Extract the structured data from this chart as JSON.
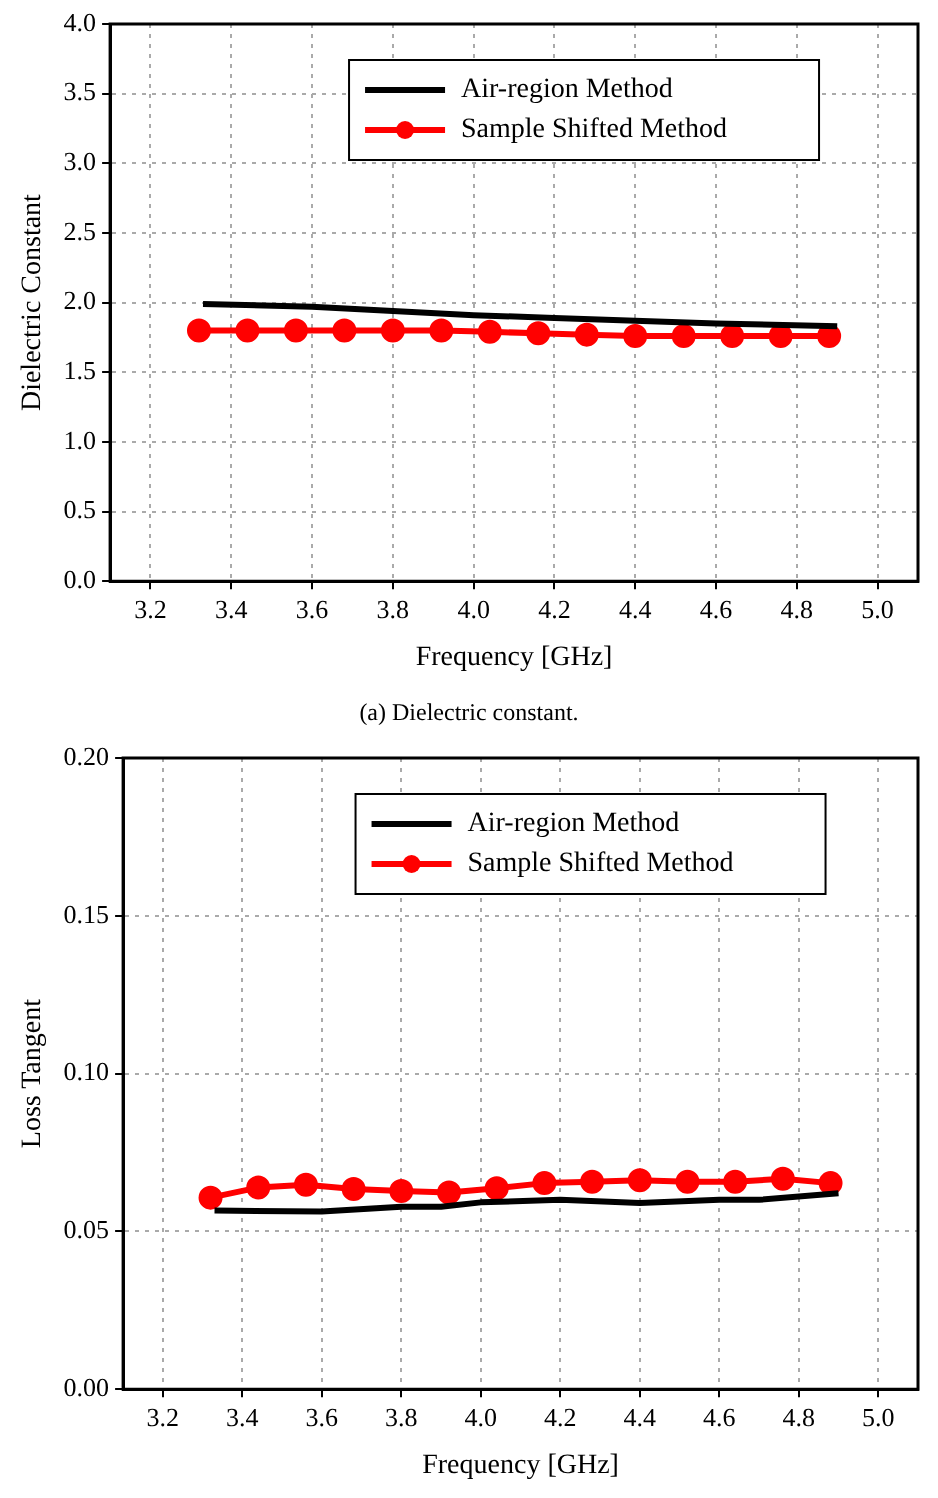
{
  "chart_data": [
    {
      "type": "line",
      "xlabel": "Frequency [GHz]",
      "ylabel": "Dielectric Constant",
      "annotations": [
        "(a) Dielectric constant."
      ],
      "xlim": [
        3.1,
        5.1
      ],
      "xticks": [
        {
          "value": 3.2,
          "label": "3.2"
        },
        {
          "value": 3.4,
          "label": "3.4"
        },
        {
          "value": 3.6,
          "label": "3.6"
        },
        {
          "value": 3.8,
          "label": "3.8"
        },
        {
          "value": 4.0,
          "label": "4.0"
        },
        {
          "value": 4.2,
          "label": "4.2"
        },
        {
          "value": 4.4,
          "label": "4.4"
        },
        {
          "value": 4.6,
          "label": "4.6"
        },
        {
          "value": 4.8,
          "label": "4.8"
        },
        {
          "value": 5.0,
          "label": "5.0"
        }
      ],
      "ylim": [
        0,
        4
      ],
      "yticks": [
        {
          "value": 0,
          "label": "0.0"
        },
        {
          "value": 0.5,
          "label": "0.5"
        },
        {
          "value": 1,
          "label": "1.0"
        },
        {
          "value": 1.5,
          "label": "1.5"
        },
        {
          "value": 2,
          "label": "2.0"
        },
        {
          "value": 2.5,
          "label": "2.5"
        },
        {
          "value": 3,
          "label": "3.0"
        },
        {
          "value": 3.5,
          "label": "3.5"
        },
        {
          "value": 4,
          "label": "4.0"
        }
      ],
      "grid": true,
      "legend": "top",
      "series": [
        {
          "name": "Air-region Method",
          "color": "#000000",
          "marker": "none",
          "x": [
            3.33,
            3.6,
            3.8,
            4.0,
            4.2,
            4.4,
            4.6,
            4.9
          ],
          "values": [
            1.99,
            1.97,
            1.94,
            1.91,
            1.89,
            1.87,
            1.85,
            1.83
          ]
        },
        {
          "name": "Sample Shifted Method",
          "color": "#ff0000",
          "marker": "circle",
          "x": [
            3.32,
            3.44,
            3.56,
            3.68,
            3.8,
            3.92,
            4.04,
            4.16,
            4.28,
            4.4,
            4.52,
            4.64,
            4.76,
            4.88
          ],
          "values": [
            1.8,
            1.8,
            1.8,
            1.8,
            1.8,
            1.8,
            1.79,
            1.78,
            1.77,
            1.76,
            1.76,
            1.76,
            1.76,
            1.76
          ]
        }
      ]
    },
    {
      "type": "line",
      "xlabel": "Frequency [GHz]",
      "ylabel": "Loss Tangent",
      "xlim": [
        3.1,
        5.1
      ],
      "xticks": [
        {
          "value": 3.2,
          "label": "3.2"
        },
        {
          "value": 3.4,
          "label": "3.4"
        },
        {
          "value": 3.6,
          "label": "3.6"
        },
        {
          "value": 3.8,
          "label": "3.8"
        },
        {
          "value": 4.0,
          "label": "4.0"
        },
        {
          "value": 4.2,
          "label": "4.2"
        },
        {
          "value": 4.4,
          "label": "4.4"
        },
        {
          "value": 4.6,
          "label": "4.6"
        },
        {
          "value": 4.8,
          "label": "4.8"
        },
        {
          "value": 5.0,
          "label": "5.0"
        }
      ],
      "ylim": [
        0,
        0.2
      ],
      "yticks": [
        {
          "value": 0,
          "label": "0.00"
        },
        {
          "value": 0.05,
          "label": "0.05"
        },
        {
          "value": 0.1,
          "label": "0.10"
        },
        {
          "value": 0.15,
          "label": "0.15"
        },
        {
          "value": 0.2,
          "label": "0.20"
        }
      ],
      "grid": true,
      "legend": "top",
      "series": [
        {
          "name": "Air-region Method",
          "color": "#000000",
          "marker": "none",
          "x": [
            3.33,
            3.6,
            3.8,
            3.9,
            4.0,
            4.2,
            4.4,
            4.6,
            4.7,
            4.9
          ],
          "values": [
            0.0566,
            0.0563,
            0.0578,
            0.0578,
            0.0592,
            0.06,
            0.059,
            0.06,
            0.06,
            0.0621
          ]
        },
        {
          "name": "Sample Shifted Method",
          "color": "#ff0000",
          "marker": "circle",
          "x": [
            3.32,
            3.44,
            3.56,
            3.68,
            3.8,
            3.92,
            4.04,
            4.16,
            4.28,
            4.4,
            4.52,
            4.64,
            4.76,
            4.88
          ],
          "values": [
            0.0607,
            0.0639,
            0.0648,
            0.0634,
            0.0628,
            0.0623,
            0.0637,
            0.0653,
            0.0657,
            0.0662,
            0.0657,
            0.0657,
            0.0667,
            0.0653
          ]
        }
      ]
    }
  ]
}
